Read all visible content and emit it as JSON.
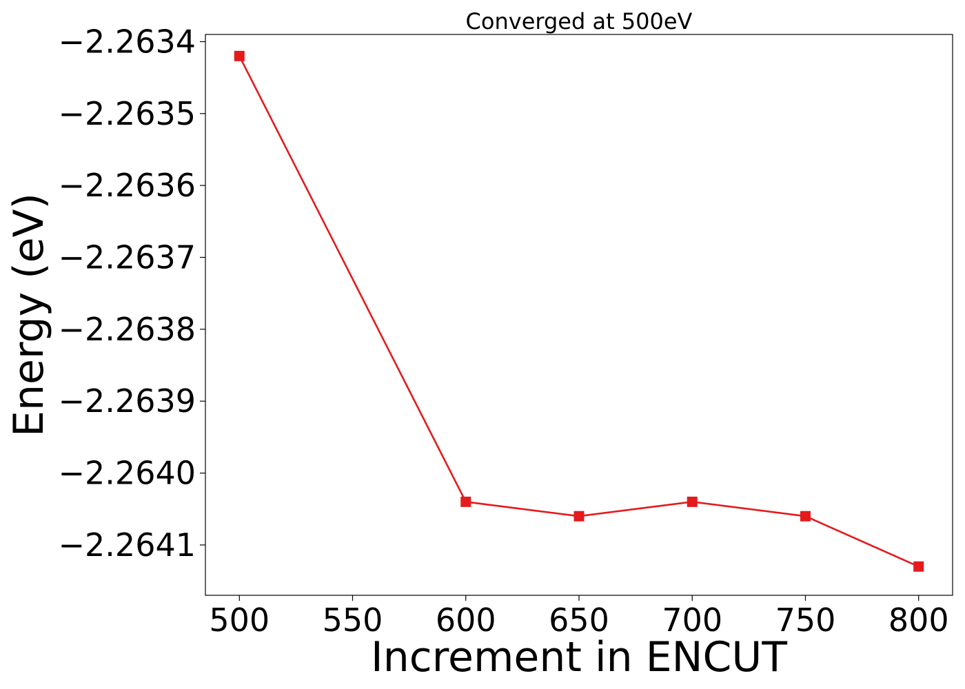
{
  "chart_data": {
    "type": "line",
    "title": "Converged at 500eV",
    "xlabel": "Increment in ENCUT",
    "ylabel": "Energy (eV)",
    "x": [
      500,
      600,
      650,
      700,
      750,
      800
    ],
    "series": [
      {
        "values": [
          -2.26342,
          -2.26404,
          -2.26406,
          -2.26404,
          -2.26406,
          -2.26413
        ],
        "color": "#e41a1c",
        "marker": "square"
      }
    ],
    "xlim": [
      485,
      815
    ],
    "ylim": [
      -2.26417,
      -2.26339
    ],
    "xticks": [
      500,
      550,
      600,
      650,
      700,
      750,
      800
    ],
    "xtick_labels": [
      "500",
      "550",
      "600",
      "650",
      "700",
      "750",
      "800"
    ],
    "yticks": [
      -2.2634,
      -2.2635,
      -2.2636,
      -2.2637,
      -2.2638,
      -2.2639,
      -2.264,
      -2.2641
    ],
    "ytick_labels": [
      "−2.2634",
      "−2.2635",
      "−2.2636",
      "−2.2637",
      "−2.2638",
      "−2.2639",
      "−2.2640",
      "−2.2641"
    ],
    "grid": false,
    "legend": false
  }
}
